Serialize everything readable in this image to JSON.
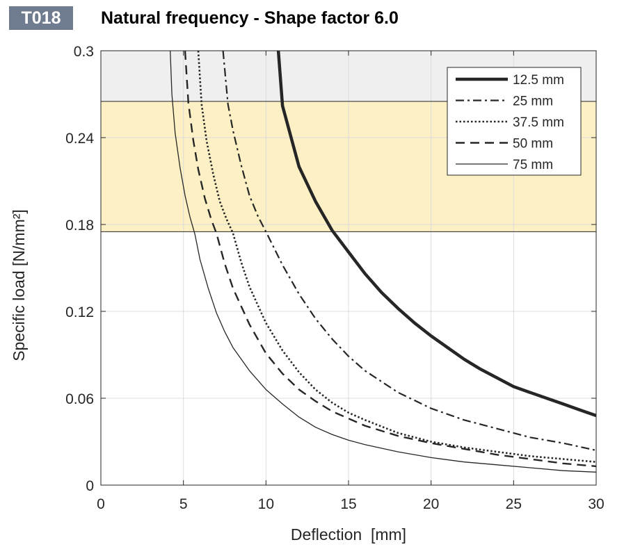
{
  "header": {
    "code": "T018",
    "title": "Natural frequency - Shape factor 6.0"
  },
  "chart_data": {
    "type": "line",
    "title": "Natural frequency - Shape factor 6.0",
    "xlabel": "Deflection  [mm]",
    "ylabel": "Specific load [N/mm²]",
    "xlim": [
      0,
      30
    ],
    "ylim": [
      0,
      0.3
    ],
    "xticks": [
      0,
      5,
      10,
      15,
      20,
      25,
      30
    ],
    "yticks": [
      0,
      0.06,
      0.12,
      0.18,
      0.24,
      0.3
    ],
    "xtick_labels": [
      "0",
      "5",
      "10",
      "15",
      "20",
      "25",
      "30"
    ],
    "ytick_labels": [
      "0",
      "0.06",
      "0.12",
      "0.18",
      "0.24",
      "0.3"
    ],
    "grid": true,
    "legend_position": "top-right",
    "bands": [
      {
        "from": 0.265,
        "to": 0.3,
        "color": "#efefef"
      },
      {
        "from": 0.175,
        "to": 0.265,
        "color": "#fcf0c4"
      }
    ],
    "series": [
      {
        "name": "12.5 mm",
        "style": "solid-thick",
        "color": "#262626",
        "x": [
          10.75,
          11.0,
          12.0,
          13.0,
          14.0,
          15.0,
          16.0,
          17.0,
          18.0,
          19.0,
          20.0,
          21.0,
          22.0,
          23.0,
          24.0,
          25.0,
          26.0,
          27.0,
          28.0,
          29.0,
          30.0
        ],
        "y": [
          0.3,
          0.262,
          0.22,
          0.196,
          0.176,
          0.161,
          0.146,
          0.133,
          0.122,
          0.112,
          0.103,
          0.095,
          0.087,
          0.08,
          0.074,
          0.068,
          0.064,
          0.06,
          0.056,
          0.052,
          0.048
        ]
      },
      {
        "name": "25 mm",
        "style": "dashdot",
        "color": "#262626",
        "x": [
          7.4,
          7.7,
          8.0,
          8.5,
          9.0,
          9.5,
          10.0,
          11.0,
          12.0,
          13.0,
          14.0,
          15.0,
          16.0,
          18.0,
          20.0,
          22.0,
          24.0,
          26.0,
          28.0,
          30.0
        ],
        "y": [
          0.3,
          0.263,
          0.245,
          0.221,
          0.2,
          0.186,
          0.175,
          0.152,
          0.132,
          0.115,
          0.101,
          0.089,
          0.079,
          0.064,
          0.053,
          0.045,
          0.039,
          0.033,
          0.029,
          0.024
        ]
      },
      {
        "name": "37.5 mm",
        "style": "dotted",
        "color": "#262626",
        "x": [
          5.9,
          6.1,
          6.4,
          6.8,
          7.2,
          7.6,
          8.0,
          8.5,
          9.0,
          10.0,
          11.0,
          12.0,
          13.0,
          14.0,
          15.0,
          16.0,
          18.0,
          20.0,
          22.0,
          24.0,
          26.0,
          28.0,
          30.0
        ],
        "y": [
          0.3,
          0.263,
          0.238,
          0.215,
          0.196,
          0.184,
          0.174,
          0.154,
          0.137,
          0.112,
          0.093,
          0.078,
          0.066,
          0.057,
          0.05,
          0.045,
          0.036,
          0.03,
          0.026,
          0.023,
          0.02,
          0.018,
          0.016
        ]
      },
      {
        "name": "50 mm",
        "style": "dashed",
        "color": "#262626",
        "x": [
          5.1,
          5.3,
          5.6,
          5.9,
          6.3,
          6.7,
          7.0,
          7.5,
          8.0,
          9.0,
          10.0,
          11.0,
          12.0,
          13.0,
          14.0,
          15.0,
          16.0,
          18.0,
          20.0,
          22.0,
          24.0,
          26.0,
          28.0,
          30.0
        ],
        "y": [
          0.3,
          0.264,
          0.238,
          0.218,
          0.198,
          0.183,
          0.174,
          0.153,
          0.136,
          0.111,
          0.091,
          0.077,
          0.066,
          0.058,
          0.051,
          0.046,
          0.041,
          0.034,
          0.029,
          0.025,
          0.021,
          0.018,
          0.015,
          0.013
        ]
      },
      {
        "name": "75 mm",
        "style": "solid-thin",
        "color": "#262626",
        "x": [
          4.2,
          4.3,
          4.5,
          4.8,
          5.1,
          5.4,
          5.7,
          6.0,
          6.5,
          7.0,
          7.5,
          8.0,
          9.0,
          10.0,
          11.0,
          12.0,
          13.0,
          14.0,
          15.0,
          16.0,
          18.0,
          20.0,
          22.0,
          24.0,
          26.0,
          28.0,
          30.0
        ],
        "y": [
          0.3,
          0.27,
          0.243,
          0.219,
          0.2,
          0.185,
          0.173,
          0.156,
          0.136,
          0.119,
          0.106,
          0.095,
          0.079,
          0.066,
          0.056,
          0.047,
          0.04,
          0.035,
          0.031,
          0.028,
          0.023,
          0.019,
          0.016,
          0.014,
          0.012,
          0.01,
          0.009
        ]
      }
    ]
  }
}
